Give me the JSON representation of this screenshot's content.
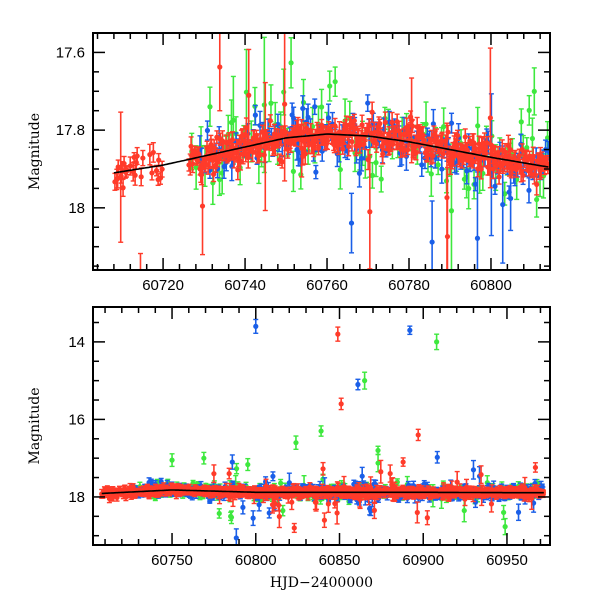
{
  "chart_data": [
    {
      "type": "scatter",
      "panel": "top",
      "title": "",
      "xlabel": "",
      "ylabel": "Magnitude",
      "xlim": [
        60702.9,
        60814.4
      ],
      "ylim": [
        18.16,
        17.55
      ],
      "y_inverted": true,
      "xticks": [
        60720,
        60740,
        60760,
        60780,
        60800
      ],
      "xtick_labels": [
        "60720",
        "60740",
        "60760",
        "60780",
        "60800"
      ],
      "yticks": [
        17.6,
        17.8,
        18
      ],
      "ytick_labels": [
        "17.6",
        "17.8",
        "18"
      ],
      "grid": false,
      "legend": null,
      "series": [
        {
          "name": "red",
          "color": "#ff3b2a",
          "description": "dense photometry with error bars; early points ~17.93 near 60708 rising to ~17.80 around 60755, declining to ~17.88 by 60810"
        },
        {
          "name": "green",
          "color": "#3ee83e",
          "description": "sparser, larger error bars; outliers up to ~17.55 and down past 18.15"
        },
        {
          "name": "blue",
          "color": "#1a5fe8",
          "description": "moderate density; scatter similar to red with some outliers"
        }
      ],
      "fit_line": {
        "color": "#000000",
        "x": [
          60708,
          60720,
          60735,
          60750,
          60760,
          60770,
          60780,
          60790,
          60800,
          60814
        ],
        "y": [
          17.91,
          17.89,
          17.855,
          17.82,
          17.81,
          17.815,
          17.83,
          17.85,
          17.87,
          17.895
        ]
      }
    },
    {
      "type": "scatter",
      "panel": "bottom",
      "title": "",
      "xlabel": "HJD−2400000",
      "ylabel": "Magnitude",
      "xlim": [
        60702.8,
        60975.7
      ],
      "ylim": [
        19.24,
        13.1
      ],
      "y_inverted": true,
      "xticks": [
        60750,
        60800,
        60850,
        60900,
        60950
      ],
      "xtick_labels": [
        "60750",
        "60800",
        "60850",
        "60900",
        "60950"
      ],
      "yticks": [
        14,
        16,
        18
      ],
      "ytick_labels": [
        "14",
        "16",
        "18"
      ],
      "grid": false,
      "legend": null,
      "series": [
        {
          "name": "red",
          "color": "#ff3b2a",
          "baseline": 17.9,
          "outliers": [
            [
              60849,
              13.8
            ],
            [
              60851,
              15.6
            ],
            [
              60897,
              16.4
            ],
            [
              60888,
              17.1
            ],
            [
              60775,
              17.4
            ],
            [
              60823,
              18.8
            ],
            [
              60841,
              18.6
            ],
            [
              60810,
              18.2
            ]
          ]
        },
        {
          "name": "green",
          "color": "#3ee83e",
          "baseline": 17.9,
          "outliers": [
            [
              60908,
              14.0
            ],
            [
              60865,
              15.0
            ],
            [
              60839,
              16.3
            ],
            [
              60873,
              16.8
            ],
            [
              60824,
              16.6
            ],
            [
              60750,
              17.05
            ],
            [
              60769,
              17.0
            ],
            [
              60785,
              18.5
            ],
            [
              60948,
              18.4
            ],
            [
              60788,
              17.7
            ]
          ]
        },
        {
          "name": "blue",
          "color": "#1a5fe8",
          "baseline": 17.9,
          "outliers": [
            [
              60800,
              13.6
            ],
            [
              60892,
              13.7
            ],
            [
              60861,
              15.1
            ],
            [
              60786,
              17.1
            ],
            [
              60930,
              17.3
            ],
            [
              60802,
              18.2
            ],
            [
              60868,
              18.3
            ]
          ]
        }
      ],
      "fit_line": {
        "color": "#000000",
        "x": [
          60708,
          60750,
          60800,
          60850,
          60900,
          60950,
          60972
        ],
        "y": [
          17.91,
          17.82,
          17.88,
          17.88,
          17.88,
          17.89,
          17.89
        ]
      }
    }
  ]
}
